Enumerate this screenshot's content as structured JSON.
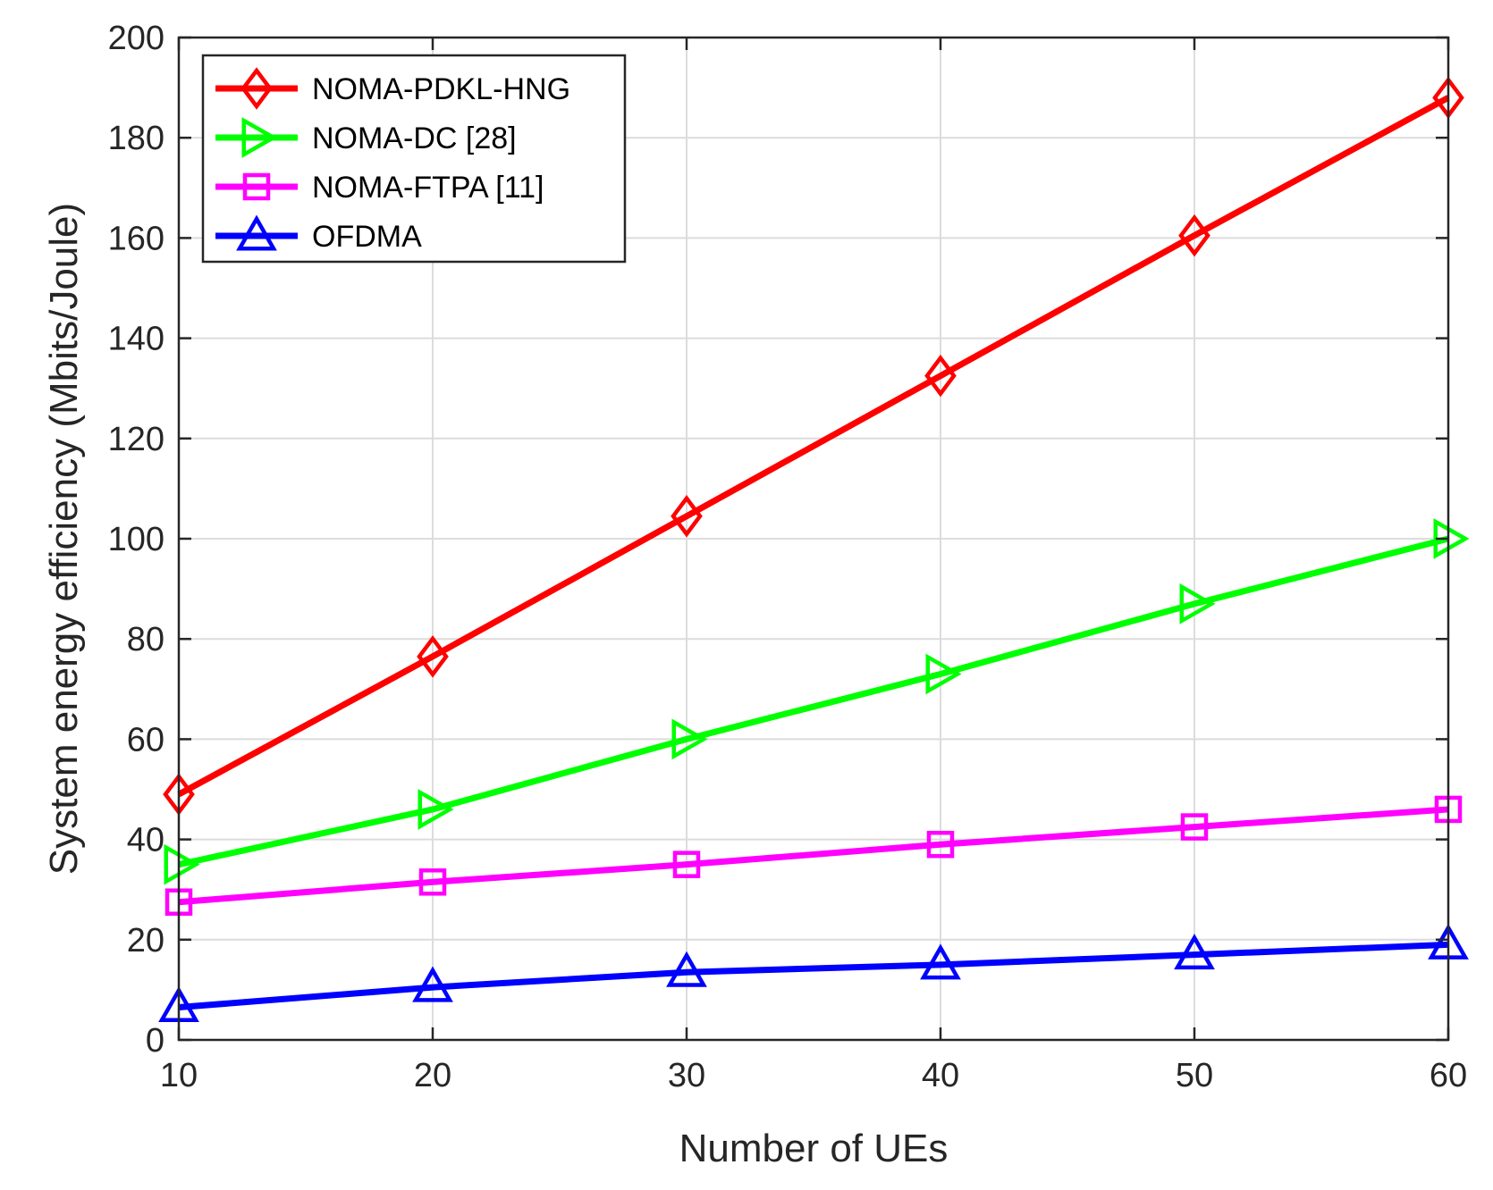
{
  "chart_data": {
    "type": "line",
    "title": "",
    "xlabel": "Number of UEs",
    "ylabel": "System energy efficiency  (Mbits/Joule)",
    "x": [
      10,
      20,
      30,
      40,
      50,
      60
    ],
    "xlim": [
      10,
      60
    ],
    "ylim": [
      0,
      200
    ],
    "xticks": [
      10,
      20,
      30,
      40,
      50,
      60
    ],
    "yticks": [
      0,
      20,
      40,
      60,
      80,
      100,
      120,
      140,
      160,
      180,
      200
    ],
    "grid": true,
    "legend_position": "top-left",
    "series": [
      {
        "name": "NOMA-PDKL-HNG",
        "color": "#ff0000",
        "marker": "diamond",
        "values": [
          49,
          76.5,
          104.5,
          132.5,
          160.5,
          188
        ]
      },
      {
        "name": "NOMA-DC [28]",
        "color": "#00ff00",
        "marker": "triangle-right",
        "values": [
          35,
          46,
          60,
          73,
          87,
          100
        ]
      },
      {
        "name": "NOMA-FTPA [11]",
        "color": "#ff00ff",
        "marker": "square",
        "values": [
          27.5,
          31.5,
          35,
          39,
          42.5,
          46
        ]
      },
      {
        "name": "OFDMA",
        "color": "#0000ff",
        "marker": "triangle-up",
        "values": [
          6.5,
          10.5,
          13.5,
          15,
          17,
          19
        ]
      }
    ]
  }
}
